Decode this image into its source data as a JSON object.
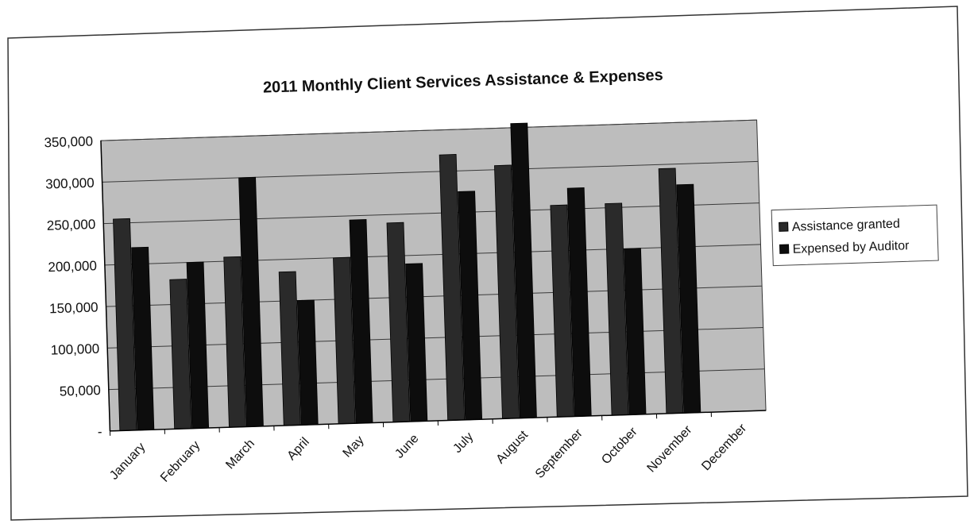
{
  "colors": {
    "plot_area": "#bdbdbd",
    "assistance_bar": "#2a2a2a",
    "expensed_bar": "#0d0d0d",
    "gridline": "#3a3a3a",
    "frame": "#333333"
  },
  "chart_data": {
    "type": "bar",
    "title": "2011 Monthly Client Services Assistance & Expenses",
    "xlabel": "",
    "ylabel": "",
    "categories": [
      "January",
      "February",
      "March",
      "April",
      "May",
      "June",
      "July",
      "August",
      "September",
      "October",
      "November",
      "December"
    ],
    "series": [
      {
        "name": "Assistance granted",
        "values": [
          255000,
          180000,
          205000,
          185000,
          200000,
          240000,
          320000,
          305000,
          255000,
          255000,
          295000,
          null
        ]
      },
      {
        "name": "Expensed by Auditor",
        "values": [
          220000,
          200000,
          300000,
          150000,
          245000,
          190000,
          275000,
          355000,
          275000,
          200000,
          275000,
          null
        ]
      }
    ],
    "ylim": [
      0,
      350000
    ],
    "yticks": [
      "-",
      "50,000",
      "100,000",
      "150,000",
      "200,000",
      "250,000",
      "300,000",
      "350,000"
    ],
    "grid": true,
    "legend_position": "right"
  }
}
